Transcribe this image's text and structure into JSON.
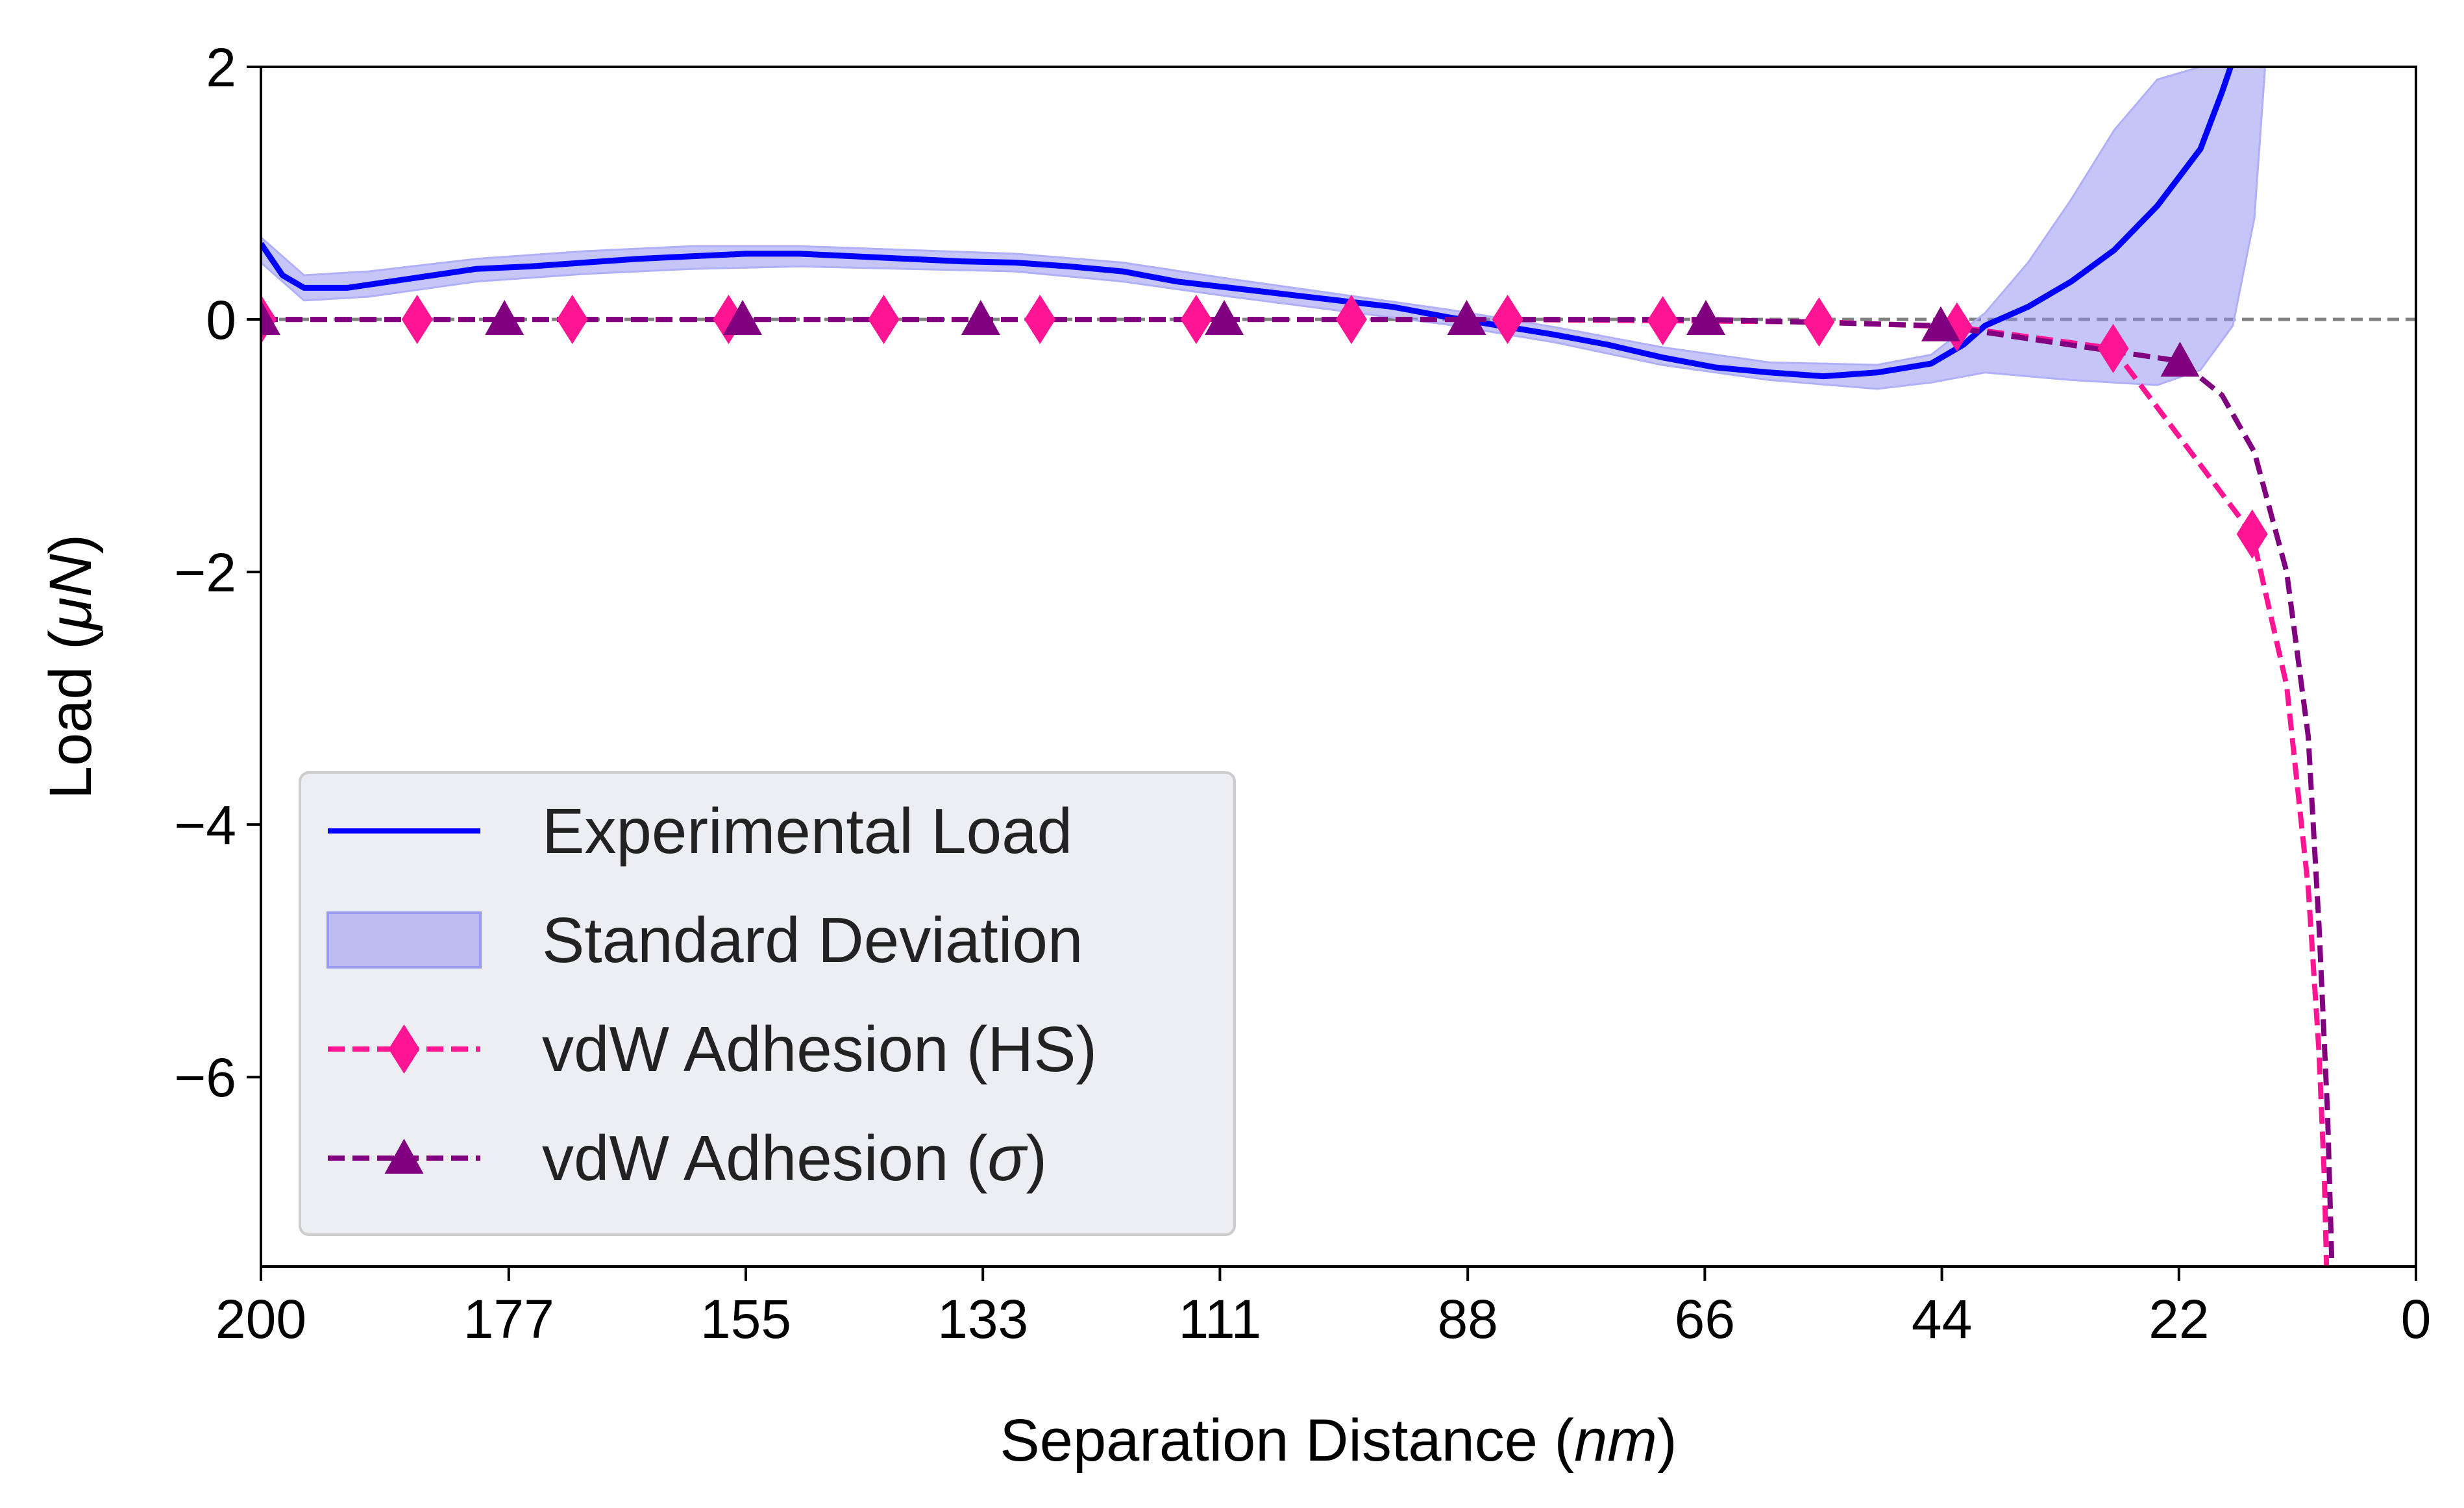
{
  "chart_data": {
    "type": "line",
    "title": "",
    "xlabel": "Separation Distance (nm)",
    "xlabel_parts": {
      "prefix": "Separation Distance (",
      "unit": "nm",
      "suffix": ")"
    },
    "ylabel": "Load (μN)",
    "ylabel_parts": {
      "prefix": "Load (",
      "unit": "μN",
      "suffix": ")"
    },
    "xlim": [
      200,
      0
    ],
    "ylim": [
      -7.5,
      2
    ],
    "x_inverted": true,
    "xticks": [
      200,
      177,
      155,
      133,
      111,
      88,
      66,
      44,
      22,
      0
    ],
    "yticks": [
      2,
      0,
      -2,
      -4,
      -6
    ],
    "ytick_labels": [
      "2",
      "0",
      "−2",
      "−4",
      "−6"
    ],
    "reference_line": {
      "y": 0,
      "style": "dashed",
      "color": "#808080"
    },
    "grid": false,
    "legend": {
      "placement": "lower-left",
      "entries": [
        {
          "label": "Experimental Load",
          "kind": "line",
          "color": "#0000ff"
        },
        {
          "label": "Standard Deviation",
          "kind": "band",
          "color": "#8c8cf0"
        },
        {
          "label": "vdW Adhesion (HS)",
          "kind": "dashed-marker",
          "marker": "diamond",
          "color": "#ff1493"
        },
        {
          "label": "vdW Adhesion (σ)",
          "kind": "dashed-marker",
          "marker": "triangle",
          "color": "#800080",
          "label_prefix": "vdW Adhesion (",
          "label_symbol": "σ",
          "label_suffix": ")"
        }
      ]
    },
    "series": [
      {
        "name": "Experimental Load",
        "color": "#0000ff",
        "x": [
          200,
          198,
          196,
          192,
          188,
          184,
          180,
          175,
          170,
          165,
          160,
          155,
          150,
          145,
          140,
          135,
          130,
          125,
          120,
          115,
          110,
          105,
          100,
          95,
          90,
          85,
          80,
          75,
          70,
          65,
          60,
          55,
          50,
          45,
          42,
          40,
          36,
          32,
          28,
          24,
          20,
          18,
          17
        ],
        "y": [
          0.6,
          0.35,
          0.25,
          0.25,
          0.3,
          0.35,
          0.4,
          0.42,
          0.45,
          0.48,
          0.5,
          0.52,
          0.52,
          0.5,
          0.48,
          0.46,
          0.45,
          0.42,
          0.38,
          0.3,
          0.25,
          0.2,
          0.15,
          0.1,
          0.02,
          -0.05,
          -0.12,
          -0.2,
          -0.3,
          -0.38,
          -0.42,
          -0.45,
          -0.42,
          -0.35,
          -0.2,
          -0.05,
          0.1,
          0.3,
          0.55,
          0.9,
          1.35,
          1.8,
          2.05
        ]
      },
      {
        "name": "Standard Deviation",
        "color": "#8c8cf0",
        "x": [
          200,
          196,
          190,
          180,
          170,
          160,
          150,
          140,
          130,
          120,
          110,
          100,
          90,
          80,
          70,
          60,
          50,
          45,
          40,
          36,
          32,
          28,
          24,
          20,
          17,
          15,
          14
        ],
        "y_upper": [
          0.65,
          0.35,
          0.38,
          0.48,
          0.54,
          0.58,
          0.58,
          0.55,
          0.52,
          0.45,
          0.32,
          0.2,
          0.08,
          -0.06,
          -0.22,
          -0.34,
          -0.36,
          -0.28,
          0.05,
          0.45,
          0.95,
          1.5,
          1.9,
          2.0,
          2.0,
          2.0,
          2.0
        ],
        "y_lower": [
          0.45,
          0.15,
          0.18,
          0.3,
          0.36,
          0.4,
          0.42,
          0.4,
          0.38,
          0.3,
          0.18,
          0.07,
          -0.04,
          -0.18,
          -0.36,
          -0.48,
          -0.55,
          -0.5,
          -0.42,
          -0.45,
          -0.48,
          -0.5,
          -0.52,
          -0.4,
          -0.05,
          0.8,
          2.0
        ]
      },
      {
        "name": "vdW Adhesion (HS)",
        "color": "#ff1493",
        "marker": "diamond",
        "x": [
          200,
          185.5,
          171.1,
          156.6,
          142.2,
          127.7,
          113.2,
          98.8,
          84.3,
          69.9,
          55.4,
          42.6,
          28.1,
          15.2,
          12,
          10,
          9,
          8.5,
          8.3
        ],
        "y": [
          0,
          0,
          0,
          0,
          0,
          0,
          0,
          0,
          0,
          -0.01,
          -0.02,
          -0.06,
          -0.23,
          -1.7,
          -2.9,
          -4.5,
          -5.8,
          -6.8,
          -7.5
        ],
        "marker_x": [
          200,
          185.5,
          171.1,
          156.6,
          142.2,
          127.7,
          113.2,
          98.8,
          84.3,
          69.9,
          55.4,
          42.6,
          28.1,
          15.2
        ],
        "marker_y": [
          0,
          0,
          0,
          0,
          0,
          0,
          0,
          0,
          0,
          -0.01,
          -0.02,
          -0.06,
          -0.23,
          -1.7
        ]
      },
      {
        "name": "vdW Adhesion (σ)",
        "color": "#800080",
        "marker": "triangle",
        "x": [
          200,
          177.4,
          155.3,
          133.2,
          110.6,
          88.1,
          65.9,
          44.1,
          21.9,
          18,
          15,
          12,
          10,
          9,
          8.2,
          7.8
        ],
        "y": [
          0,
          0,
          0,
          0,
          0,
          0,
          0,
          -0.05,
          -0.33,
          -0.6,
          -1.05,
          -2.0,
          -3.3,
          -4.8,
          -6.3,
          -7.5
        ],
        "marker_x": [
          200,
          177.4,
          155.3,
          133.2,
          110.6,
          88.1,
          65.9,
          44.1,
          21.9
        ],
        "marker_y": [
          0,
          0,
          0,
          0,
          0,
          0,
          0,
          -0.05,
          -0.33
        ]
      }
    ]
  }
}
